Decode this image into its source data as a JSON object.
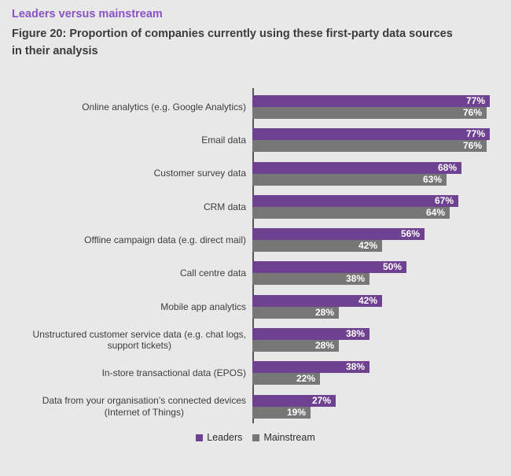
{
  "header": {
    "eyebrow": "Leaders versus mainstream",
    "figure_title": "Figure 20: Proportion of companies currently using these first-party data sources\nin their analysis"
  },
  "chart_data": {
    "type": "bar",
    "orientation": "horizontal",
    "title": "Figure 20: Proportion of companies currently using these first-party data sources in their analysis",
    "categories": [
      "Online analytics (e.g. Google Analytics)",
      "Email data",
      "Customer survey data",
      "CRM data",
      "Offline campaign data (e.g. direct mail)",
      "Call centre data",
      "Mobile app analytics",
      "Unstructured customer service data (e.g. chat logs,\nsupport tickets)",
      "In-store transactional data (EPOS)",
      "Data from your organisation’s connected devices\n(Internet of Things)"
    ],
    "series": [
      {
        "name": "Leaders",
        "color": "#6f4191",
        "values": [
          77,
          77,
          68,
          67,
          56,
          50,
          42,
          38,
          38,
          27
        ]
      },
      {
        "name": "Mainstream",
        "color": "#777777",
        "values": [
          76,
          76,
          63,
          64,
          42,
          38,
          28,
          28,
          22,
          19
        ]
      }
    ],
    "value_suffix": "%",
    "xlim": [
      0,
      84
    ],
    "grid": false,
    "legend_position": "bottom"
  },
  "colors": {
    "background": "#e9e8e8",
    "axis": "#555555",
    "eyebrow_text": "#8a53c5",
    "title_text": "#3b3b3b",
    "category_text": "#3d3d3d",
    "value_text": "#ffffff",
    "leaders_bar": "#6f4191",
    "mainstream_bar": "#777777"
  }
}
